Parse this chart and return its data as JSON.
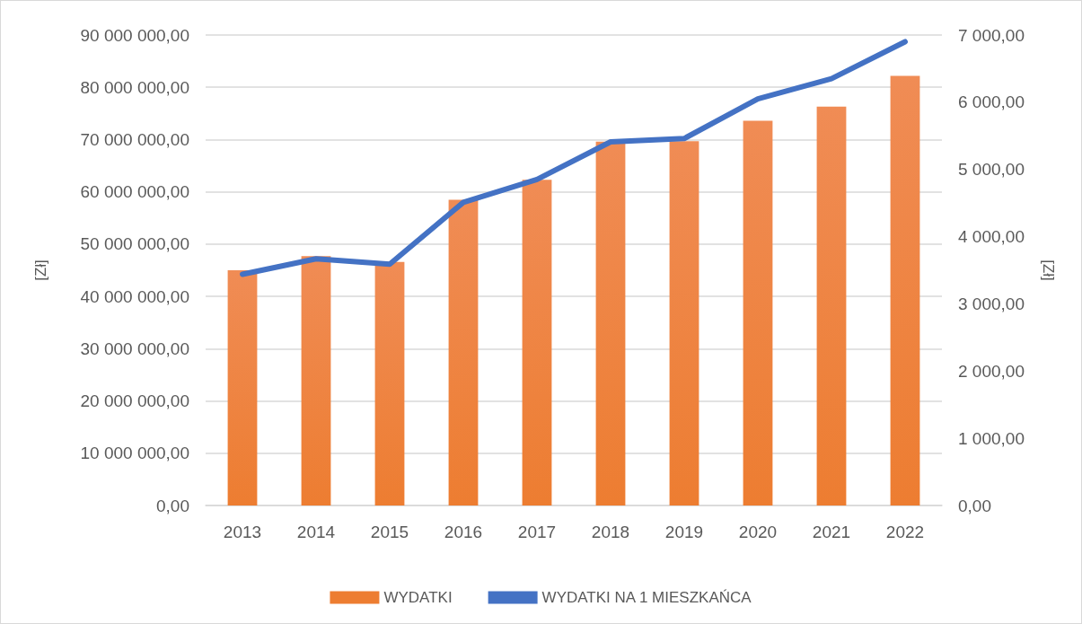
{
  "chart_data": {
    "type": "bar",
    "categories": [
      "2013",
      "2014",
      "2015",
      "2016",
      "2017",
      "2018",
      "2019",
      "2020",
      "2021",
      "2022"
    ],
    "series": [
      {
        "name": "WYDATKI",
        "color": "#ed7d31",
        "values": [
          45000000,
          47700000,
          46600000,
          58500000,
          62300000,
          69600000,
          69700000,
          73600000,
          76300000,
          82200000
        ]
      },
      {
        "name": "WYDATKI NA 1 MIESZKAŃCA",
        "type": "line",
        "axis": "y2",
        "color": "#4472c4",
        "values": [
          3440,
          3670,
          3590,
          4510,
          4850,
          5410,
          5460,
          6050,
          6350,
          6900
        ]
      }
    ],
    "ylabel": "[Zł]",
    "y2label": "[Zł]",
    "ylim": [
      0,
      90000000
    ],
    "yticks": [
      {
        "value": 0,
        "label": "0,00"
      },
      {
        "value": 10000000,
        "label": "10 000 000,00"
      },
      {
        "value": 20000000,
        "label": "20 000 000,00"
      },
      {
        "value": 30000000,
        "label": "30 000 000,00"
      },
      {
        "value": 40000000,
        "label": "40 000 000,00"
      },
      {
        "value": 50000000,
        "label": "50 000 000,00"
      },
      {
        "value": 60000000,
        "label": "60 000 000,00"
      },
      {
        "value": 70000000,
        "label": "70 000 000,00"
      },
      {
        "value": 80000000,
        "label": "80 000 000,00"
      },
      {
        "value": 90000000,
        "label": "90 000 000,00"
      }
    ],
    "y2lim": [
      0,
      7000
    ],
    "y2ticks": [
      {
        "value": 0,
        "label": "0,00"
      },
      {
        "value": 1000,
        "label": "1 000,00"
      },
      {
        "value": 2000,
        "label": "2 000,00"
      },
      {
        "value": 3000,
        "label": "3 000,00"
      },
      {
        "value": 4000,
        "label": "4 000,00"
      },
      {
        "value": 5000,
        "label": "5 000,00"
      },
      {
        "value": 6000,
        "label": "6 000,00"
      },
      {
        "value": 7000,
        "label": "7 000,00"
      }
    ],
    "grid": "y",
    "legend": "bottom",
    "marker": "none",
    "line_style": "solid"
  }
}
